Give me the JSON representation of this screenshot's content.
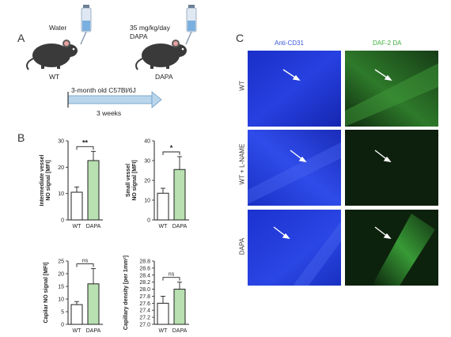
{
  "panel_a": {
    "letter": "A",
    "left_label": "Water",
    "right_label_line1": "35 mg/kg/day",
    "right_label_line2": "DAPA",
    "wt_label": "WT",
    "dapa_label": "DAPA",
    "arrow_text": "3-month old C57Bl/6J",
    "duration": "3 weeks"
  },
  "panel_b": {
    "letter": "B"
  },
  "panel_c": {
    "letter": "C",
    "col1": "Anti-CD31",
    "col2": "DAF-2 DA",
    "rows": [
      "WT",
      "WT + L-NAME",
      "DAPA"
    ],
    "col1_color": "#3a55d8",
    "col2_color": "#3fae3f"
  },
  "colors": {
    "wt_fill": "#ffffff",
    "dapa_fill": "#b8e0b0",
    "axis": "#222222"
  },
  "chart_data": [
    {
      "type": "bar",
      "ylabel": "Intermediate vessel NO signal [MFI]",
      "ylabel_line1": "Intermediate vessel",
      "ylabel_line2": "NO signal [MFI]",
      "categories": [
        "WT",
        "DAPA"
      ],
      "values": [
        10.5,
        22.5
      ],
      "errors": [
        2,
        3.5
      ],
      "ylim": [
        0,
        30
      ],
      "yticks": [
        "0",
        "10",
        "20",
        "30"
      ],
      "significance": "**"
    },
    {
      "type": "bar",
      "ylabel": "Small vessel NO signal [MFI]",
      "ylabel_line1": "Small vessel",
      "ylabel_line2": "NO signal [MFI]",
      "categories": [
        "WT",
        "DAPA"
      ],
      "values": [
        13.5,
        25.5
      ],
      "errors": [
        2.5,
        6.5
      ],
      "ylim": [
        0,
        40
      ],
      "yticks": [
        "0",
        "10",
        "20",
        "30",
        "40"
      ],
      "significance": "*"
    },
    {
      "type": "bar",
      "ylabel": "Capilar NO signal [MFI]",
      "ylabel_line1": "Capilar NO signal [MFI]",
      "ylabel_line2": "",
      "categories": [
        "WT",
        "DAPA"
      ],
      "values": [
        7.8,
        16
      ],
      "errors": [
        1.2,
        6
      ],
      "ylim": [
        0,
        25
      ],
      "yticks": [
        "0",
        "5",
        "10",
        "15",
        "20",
        "25"
      ],
      "significance": "ns"
    },
    {
      "type": "bar",
      "ylabel": "Capillary density [per 1mm²]",
      "ylabel_line1": "Capillary density [per 1mm²]",
      "ylabel_line2": "",
      "categories": [
        "WT",
        "DAPA"
      ],
      "values": [
        27.6,
        28.0
      ],
      "errors": [
        0.2,
        0.2
      ],
      "ylim": [
        27,
        28.8
      ],
      "yticks": [
        "27.0",
        "27.2",
        "27.4",
        "27.6",
        "27.8",
        "28.0",
        "28.2",
        "28.4",
        "28.6",
        "28.8"
      ],
      "significance": "ns"
    }
  ]
}
